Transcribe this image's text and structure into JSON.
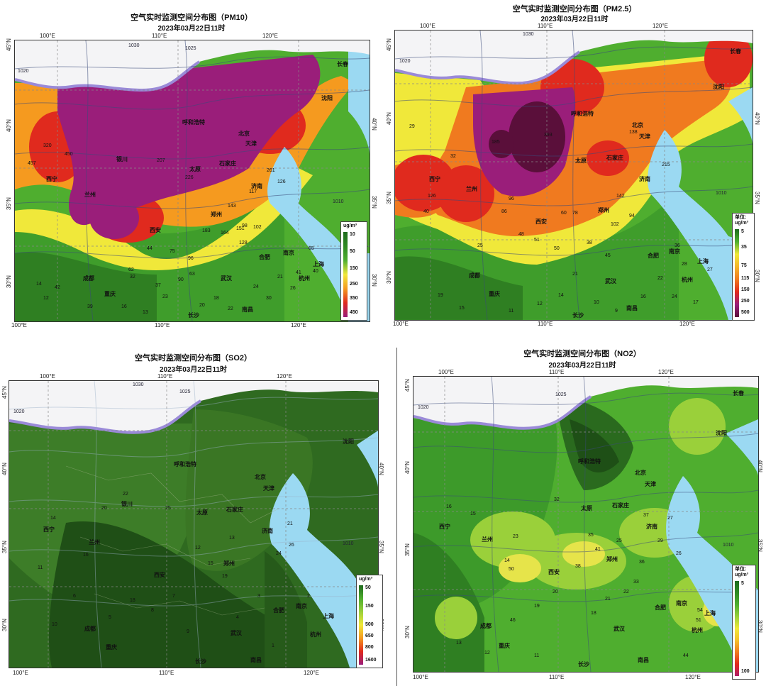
{
  "panels": [
    {
      "id": "pm10",
      "title": "空气实时监测空间分布图（PM10）",
      "date": "2023年03月22日11时",
      "legend_unit": [
        "ug/m³"
      ],
      "legend_ticks": [
        "10",
        "50",
        "150",
        "250",
        "350",
        "450"
      ],
      "legend_colors": [
        "#1e6b1e",
        "#4fae2f",
        "#f0e83a",
        "#f59a1f",
        "#e02a1e",
        "#9a1e7a"
      ],
      "lon_labels_top": [
        "100°E",
        "110°E",
        "120°E"
      ],
      "lon_labels_bottom": [
        "100°E",
        "110°E",
        "120°E"
      ],
      "lat_labels": [
        "45°N",
        "40°N",
        "35°N",
        "30°N"
      ],
      "cities": [
        "沈阳",
        "北京",
        "天津",
        "石家庄",
        "太原",
        "济南",
        "郑州",
        "西安",
        "兰州",
        "西宁",
        "银川",
        "合肥",
        "南京",
        "上海",
        "杭州",
        "武汉",
        "长沙",
        "南昌",
        "成都",
        "重庆",
        "呼和浩特",
        "长春"
      ],
      "values": [
        "457",
        "450",
        "320",
        "261",
        "207",
        "226",
        "143",
        "117",
        "126",
        "98",
        "183",
        "164",
        "151",
        "102",
        "128",
        "75",
        "96",
        "90",
        "63",
        "62",
        "44",
        "32",
        "20",
        "21",
        "26",
        "41",
        "65",
        "40",
        "14",
        "12",
        "39",
        "42",
        "37",
        "23",
        "24",
        "30",
        "16",
        "13",
        "18",
        "22"
      ]
    },
    {
      "id": "pm25",
      "title": "空气实时监测空间分布图（PM2.5）",
      "date": "2023年03月22日11时",
      "legend_unit": [
        "单位:",
        "ug/m³"
      ],
      "legend_ticks": [
        "5",
        "35",
        "75",
        "115",
        "150",
        "250",
        "500"
      ],
      "legend_colors": [
        "#1e6b1e",
        "#4fae2f",
        "#f0e83a",
        "#f5b52a",
        "#f07a1f",
        "#e02a1e",
        "#9a1e7a",
        "#5a0f3a"
      ],
      "lon_labels_top": [
        "100°E",
        "110°E",
        "120°E"
      ],
      "lon_labels_bottom": [
        "100°E",
        "110°E",
        "120°E"
      ],
      "lat_labels": [
        "45°N",
        "40°N",
        "35°N",
        "30°N"
      ],
      "cities": [
        "长春",
        "沈阳",
        "北京",
        "天津",
        "石家庄",
        "太原",
        "济南",
        "郑州",
        "西安",
        "兰州",
        "西宁",
        "呼和浩特",
        "合肥",
        "南京",
        "上海",
        "杭州",
        "武汉",
        "长沙",
        "南昌",
        "成都",
        "重庆"
      ],
      "values": [
        "393",
        "215",
        "185",
        "138",
        "126",
        "142",
        "102",
        "96",
        "94",
        "86",
        "78",
        "60",
        "51",
        "50",
        "48",
        "45",
        "40",
        "38",
        "36",
        "32",
        "29",
        "28",
        "27",
        "25",
        "24",
        "22",
        "21",
        "19",
        "17",
        "16",
        "15",
        "14",
        "12",
        "11",
        "10",
        "9"
      ]
    },
    {
      "id": "so2",
      "title": "空气实时监测空间分布图（SO2）",
      "date": "2023年03月22日11时",
      "legend_unit": [
        "ug/m³"
      ],
      "legend_ticks": [
        "50",
        "150",
        "500",
        "650",
        "800",
        "1600"
      ],
      "legend_colors": [
        "#1e6b1e",
        "#4fae2f",
        "#f0e83a",
        "#f59a1f",
        "#e02a1e",
        "#9a1e7a"
      ],
      "lon_labels_top": [
        "100°E",
        "110°E",
        "120°E"
      ],
      "lon_labels_bottom": [
        "100°E",
        "110°E",
        "120°E"
      ],
      "lat_labels": [
        "45°N",
        "40°N",
        "35°N",
        "30°N"
      ],
      "cities": [
        "沈阳",
        "北京",
        "天津",
        "石家庄",
        "太原",
        "济南",
        "郑州",
        "西安",
        "兰州",
        "西宁",
        "银川",
        "合肥",
        "南京",
        "上海",
        "杭州",
        "武汉",
        "长沙",
        "南昌",
        "成都",
        "重庆",
        "呼和浩特"
      ],
      "values": [
        "22",
        "25",
        "14",
        "20",
        "13",
        "12",
        "15",
        "24",
        "21",
        "26",
        "18",
        "8",
        "7",
        "6",
        "5",
        "4",
        "3",
        "9",
        "10",
        "11",
        "16",
        "19",
        "2",
        "1"
      ]
    },
    {
      "id": "no2",
      "title": "空气实时监测空间分布图（NO2）",
      "date": "2023年03月22日11时",
      "legend_unit": [
        "单位:",
        "ug/m³"
      ],
      "legend_ticks": [
        "5",
        "100"
      ],
      "legend_colors": [
        "#1e6b1e",
        "#2e8a22",
        "#4fae2f",
        "#9ad03a",
        "#f0e83a",
        "#f5c02a",
        "#f07a1f",
        "#e02a1e",
        "#b01e6a"
      ],
      "lon_labels_top": [
        "100°E",
        "110°E",
        "120°E"
      ],
      "lon_labels_bottom": [
        "100°E",
        "110°E",
        "120°E"
      ],
      "lat_labels": [
        "45°N",
        "40°N",
        "35°N",
        "30°N"
      ],
      "cities": [
        "长春",
        "沈阳",
        "北京",
        "天津",
        "石家庄",
        "太原",
        "济南",
        "郑州",
        "西安",
        "兰州",
        "西宁",
        "呼和浩特",
        "合肥",
        "南京",
        "上海",
        "杭州",
        "武汉",
        "长沙",
        "南昌",
        "成都",
        "重庆"
      ],
      "values": [
        "54",
        "51",
        "50",
        "46",
        "44",
        "41",
        "38",
        "37",
        "36",
        "35",
        "33",
        "32",
        "29",
        "27",
        "26",
        "25",
        "23",
        "22",
        "21",
        "20",
        "19",
        "18",
        "16",
        "15",
        "14",
        "13",
        "12",
        "11"
      ]
    }
  ],
  "isobar_labels": [
    "1030",
    "1025",
    "1020",
    "1015",
    "1010",
    "1005",
    "1000"
  ]
}
